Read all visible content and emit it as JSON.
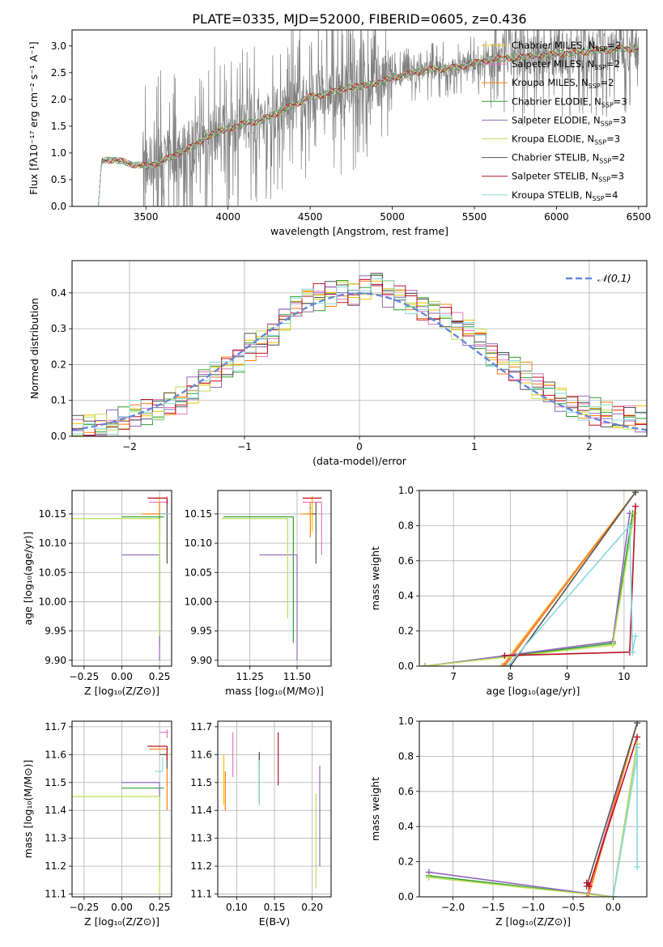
{
  "figure_title": "PLATE=0335, MJD=52000, FIBERID=0605, z=0.436",
  "colors": {
    "observed": "#808080",
    "normal": "#6688dd",
    "models": [
      "#f2c200",
      "#e377c2",
      "#ff7f0e",
      "#2ca02c",
      "#9467bd",
      "#bcdf5a",
      "#555555",
      "#bb1122",
      "#88d8dc"
    ]
  },
  "chart_data": [
    {
      "id": "spectrum",
      "type": "line",
      "xlabel": "wavelength [Angstrom, rest frame]",
      "ylabel": "Flux [fλ10⁻¹⁷ erg cm⁻² s⁻¹ A⁻¹]",
      "xlim": [
        3050,
        6550
      ],
      "ylim": [
        0,
        3.3
      ],
      "xticks": [
        3500,
        4000,
        4500,
        5000,
        5500,
        6000,
        6500
      ],
      "yticks": [
        0.0,
        0.5,
        1.0,
        1.5,
        2.0,
        2.5,
        3.0
      ],
      "legend_position": "top-right",
      "legend": [
        "Chabrier MILES, N_SSP=2",
        "Salpeter MILES, N_SSP=2",
        "Kroupa MILES, N_SSP=2",
        "Chabrier ELODIE, N_SSP=3",
        "Salpeter ELODIE, N_SSP=3",
        "Kroupa ELODIE, N_SSP=3",
        "Chabrier STELIB, N_SSP=2",
        "Salpeter STELIB, N_SSP=3",
        "Kroupa STELIB, N_SSP=4"
      ],
      "model_continuum": {
        "x": [
          3210,
          3230,
          3300,
          3400,
          3500,
          3600,
          3700,
          3800,
          3900,
          4000,
          4100,
          4200,
          4300,
          4400,
          4500,
          4600,
          4700,
          4800,
          4900,
          5000,
          5200,
          5400,
          5600,
          5800,
          6000,
          6200,
          6400
        ],
        "y": [
          0.0,
          0.85,
          0.88,
          0.8,
          0.75,
          0.85,
          1.0,
          1.15,
          1.35,
          1.45,
          1.55,
          1.6,
          1.75,
          1.9,
          2.05,
          2.1,
          2.2,
          2.25,
          2.3,
          2.4,
          2.55,
          2.6,
          2.75,
          2.8,
          2.85,
          2.9,
          2.95
        ]
      }
    },
    {
      "id": "residuals",
      "type": "histogram",
      "xlabel": "(data-model)/error",
      "ylabel": "Normed distribution",
      "xlim": [
        -2.5,
        2.5
      ],
      "ylim": [
        0,
        0.49
      ],
      "xticks": [
        -2,
        -1,
        0,
        1,
        2
      ],
      "yticks": [
        0.0,
        0.1,
        0.2,
        0.3,
        0.4
      ],
      "legend": [
        "𝒩(0,1)"
      ],
      "legend_position": "top-right",
      "bin_edges": [
        -2.5,
        -2.4,
        -2.3,
        -2.2,
        -2.1,
        -2.0,
        -1.9,
        -1.8,
        -1.7,
        -1.6,
        -1.5,
        -1.4,
        -1.3,
        -1.2,
        -1.1,
        -1.0,
        -0.9,
        -0.8,
        -0.7,
        -0.6,
        -0.5,
        -0.4,
        -0.3,
        -0.2,
        -0.1,
        0.0,
        0.1,
        0.2,
        0.3,
        0.4,
        0.5,
        0.6,
        0.7,
        0.8,
        0.9,
        1.0,
        1.1,
        1.2,
        1.3,
        1.4,
        1.5,
        1.6,
        1.7,
        1.8,
        1.9,
        2.0,
        2.1,
        2.2,
        2.3,
        2.4,
        2.5
      ],
      "base_density": [
        0.02,
        0.025,
        0.03,
        0.035,
        0.045,
        0.06,
        0.065,
        0.07,
        0.09,
        0.1,
        0.13,
        0.16,
        0.17,
        0.19,
        0.21,
        0.25,
        0.26,
        0.29,
        0.33,
        0.36,
        0.38,
        0.39,
        0.4,
        0.41,
        0.4,
        0.42,
        0.43,
        0.4,
        0.39,
        0.38,
        0.36,
        0.35,
        0.34,
        0.31,
        0.29,
        0.27,
        0.23,
        0.21,
        0.19,
        0.17,
        0.14,
        0.12,
        0.1,
        0.09,
        0.08,
        0.07,
        0.06,
        0.05,
        0.05,
        0.045
      ]
    },
    {
      "id": "age-vs-Z",
      "type": "errorbar",
      "xlabel": "Z [log₁₀(Z/Z⊙)]",
      "ylabel": "age  [log₁₀(age/yr)]",
      "xlim": [
        -0.33,
        0.33
      ],
      "ylim": [
        9.89,
        10.19
      ],
      "xticks": [
        -0.25,
        0.0,
        0.25
      ],
      "xticklabels": [
        "−0.25",
        "0.00",
        "0.25"
      ],
      "yticks": [
        9.9,
        9.95,
        10.0,
        10.05,
        10.1,
        10.15
      ],
      "points": [
        {
          "model": 0,
          "x": 0.25,
          "y": 10.15,
          "xlo": 0.07,
          "xhi": 0.05,
          "ylo": 0.03,
          "yhi": 0.03
        },
        {
          "model": 1,
          "x": 0.3,
          "y": 10.17,
          "xlo": 0.12,
          "xhi": 0.01,
          "ylo": 0.1,
          "yhi": 0.01
        },
        {
          "model": 2,
          "x": 0.25,
          "y": 10.15,
          "xlo": 0.12,
          "xhi": 0.05,
          "ylo": 0.04,
          "yhi": 0.02
        },
        {
          "model": 3,
          "x": 0.25,
          "y": 10.145,
          "xlo": 0.25,
          "xhi": 0.03,
          "ylo": 0.22,
          "yhi": 0.0
        },
        {
          "model": 4,
          "x": 0.25,
          "y": 10.08,
          "xlo": 0.25,
          "xhi": 0.0,
          "ylo": 0.18,
          "yhi": 0.0
        },
        {
          "model": 5,
          "x": 0.25,
          "y": 10.142,
          "xlo": 0.58,
          "xhi": 0.0,
          "ylo": 0.2,
          "yhi": 0.0
        },
        {
          "model": 6,
          "x": 0.3,
          "y": 10.15,
          "xlo": 0.05,
          "xhi": 0.01,
          "ylo": 0.085,
          "yhi": 0.025
        },
        {
          "model": 7,
          "x": 0.3,
          "y": 10.177,
          "xlo": 0.13,
          "xhi": 0.0,
          "ylo": 0.01,
          "yhi": 0.0
        },
        {
          "model": 8,
          "x": 0.3,
          "y": 10.15,
          "xlo": 0.05,
          "xhi": 0.01,
          "ylo": 0.0,
          "yhi": 0.0
        }
      ]
    },
    {
      "id": "age-vs-mass",
      "type": "errorbar",
      "xlabel": "mass [log₁₀(M/M⊙)]",
      "xlim": [
        11.08,
        11.68
      ],
      "ylim": [
        9.89,
        10.19
      ],
      "xticks": [
        11.25,
        11.5
      ],
      "xticklabels": [
        "11.25",
        "11.50"
      ],
      "yticks": [
        9.9,
        9.95,
        10.0,
        10.05,
        10.1,
        10.15
      ],
      "points": [
        {
          "model": 0,
          "x": 11.58,
          "y": 10.15,
          "xlo": 0.03,
          "xhi": 0.03,
          "ylo": 0.03,
          "yhi": 0.03
        },
        {
          "model": 1,
          "x": 11.63,
          "y": 10.17,
          "xlo": 0.1,
          "xhi": 0.0,
          "ylo": 0.09,
          "yhi": 0.0
        },
        {
          "model": 2,
          "x": 11.57,
          "y": 10.15,
          "xlo": 0.05,
          "xhi": 0.02,
          "ylo": 0.04,
          "yhi": 0.02
        },
        {
          "model": 3,
          "x": 11.48,
          "y": 10.145,
          "xlo": 0.37,
          "xhi": 0.0,
          "ylo": 0.215,
          "yhi": 0.0
        },
        {
          "model": 4,
          "x": 11.5,
          "y": 10.08,
          "xlo": 0.2,
          "xhi": 0.0,
          "ylo": 0.18,
          "yhi": 0.0
        },
        {
          "model": 5,
          "x": 11.45,
          "y": 10.142,
          "xlo": 0.35,
          "xhi": 0.0,
          "ylo": 0.17,
          "yhi": 0.0
        },
        {
          "model": 6,
          "x": 11.6,
          "y": 10.15,
          "xlo": 0.02,
          "xhi": 0.0,
          "ylo": 0.085,
          "yhi": 0.02
        },
        {
          "model": 7,
          "x": 11.63,
          "y": 10.177,
          "xlo": 0.1,
          "xhi": 0.0,
          "ylo": 0.0,
          "yhi": 0.0
        },
        {
          "model": 8,
          "x": 11.58,
          "y": 10.16,
          "xlo": 0.02,
          "xhi": 0.0,
          "ylo": 0.0,
          "yhi": 0.0
        }
      ]
    },
    {
      "id": "weight-vs-age",
      "type": "line",
      "xlabel": "age  [log₁₀(age/yr)]",
      "ylabel": "mass weight",
      "xlim": [
        6.4,
        10.4
      ],
      "ylim": [
        0.0,
        1.0
      ],
      "xticks": [
        7,
        8,
        9,
        10
      ],
      "yticks": [
        0.0,
        0.2,
        0.4,
        0.6,
        0.8,
        1.0
      ],
      "series": [
        {
          "model": 0,
          "x": [
            7.85,
            10.2
          ],
          "y": [
            0.0,
            0.99
          ]
        },
        {
          "model": 1,
          "x": [
            7.88,
            10.2
          ],
          "y": [
            0.0,
            0.99
          ]
        },
        {
          "model": 2,
          "x": [
            7.9,
            10.2
          ],
          "y": [
            0.0,
            0.99
          ]
        },
        {
          "model": 3,
          "x": [
            6.5,
            9.8,
            10.15
          ],
          "y": [
            0.0,
            0.13,
            0.87
          ]
        },
        {
          "model": 4,
          "x": [
            6.5,
            9.8,
            10.1
          ],
          "y": [
            0.0,
            0.14,
            0.87
          ]
        },
        {
          "model": 5,
          "x": [
            6.5,
            9.8,
            10.18
          ],
          "y": [
            0.0,
            0.12,
            0.87
          ]
        },
        {
          "model": 6,
          "x": [
            8.0,
            10.2
          ],
          "y": [
            0.0,
            0.99
          ]
        },
        {
          "model": 7,
          "x": [
            7.9,
            10.1,
            10.2
          ],
          "y": [
            0.06,
            0.08,
            0.91
          ]
        },
        {
          "model": 8,
          "x": [
            7.95,
            10.1,
            10.15,
            10.2
          ],
          "y": [
            0.0,
            0.8,
            0.08,
            0.17
          ]
        }
      ]
    },
    {
      "id": "mass-vs-Z",
      "type": "errorbar",
      "xlabel": "Z [log₁₀(Z/Z⊙)]",
      "ylabel": "mass [log₁₀(M/M⊙)]",
      "xlim": [
        -0.33,
        0.33
      ],
      "ylim": [
        11.09,
        11.72
      ],
      "xticks": [
        -0.25,
        0.0,
        0.25
      ],
      "xticklabels": [
        "−0.25",
        "0.00",
        "0.25"
      ],
      "yticks": [
        11.1,
        11.2,
        11.3,
        11.4,
        11.5,
        11.6,
        11.7
      ],
      "points": [
        {
          "model": 0,
          "x": 0.3,
          "y": 11.6,
          "xlo": 0.05,
          "xhi": 0.01,
          "ylo": 0.05,
          "yhi": 0.0
        },
        {
          "model": 1,
          "x": 0.3,
          "y": 11.68,
          "xlo": 0.05,
          "xhi": 0.01,
          "ylo": 0.02,
          "yhi": 0.01
        },
        {
          "model": 2,
          "x": 0.3,
          "y": 11.62,
          "xlo": 0.12,
          "xhi": 0.01,
          "ylo": 0.22,
          "yhi": 0.0
        },
        {
          "model": 3,
          "x": 0.25,
          "y": 11.48,
          "xlo": 0.25,
          "xhi": 0.03,
          "ylo": 0.3,
          "yhi": 0.0
        },
        {
          "model": 4,
          "x": 0.25,
          "y": 11.5,
          "xlo": 0.25,
          "xhi": 0.0,
          "ylo": 0.3,
          "yhi": 0.0
        },
        {
          "model": 5,
          "x": 0.25,
          "y": 11.45,
          "xlo": 0.58,
          "xhi": 0.0,
          "ylo": 0.35,
          "yhi": 0.0
        },
        {
          "model": 6,
          "x": 0.3,
          "y": 11.6,
          "xlo": 0.05,
          "xhi": 0.0,
          "ylo": 0.05,
          "yhi": 0.0
        },
        {
          "model": 7,
          "x": 0.3,
          "y": 11.63,
          "xlo": 0.13,
          "xhi": 0.0,
          "ylo": 0.05,
          "yhi": 0.0
        },
        {
          "model": 8,
          "x": 0.27,
          "y": 11.54,
          "xlo": 0.05,
          "xhi": 0.0,
          "ylo": 0.0,
          "yhi": 0.05
        }
      ]
    },
    {
      "id": "mass-vs-EBV",
      "type": "errorbar",
      "xlabel": "E(B-V)",
      "xlim": [
        0.075,
        0.225
      ],
      "ylim": [
        11.09,
        11.72
      ],
      "xticks": [
        0.1,
        0.15,
        0.2
      ],
      "xticklabels": [
        "0.10",
        "0.15",
        "0.20"
      ],
      "yticks": [
        11.1,
        11.2,
        11.3,
        11.4,
        11.5,
        11.6,
        11.7
      ],
      "points": [
        {
          "model": 0,
          "x": 0.083,
          "y": 11.5,
          "xlo": 0.0,
          "xhi": 0.0,
          "ylo": 0.08,
          "yhi": 0.1
        },
        {
          "model": 1,
          "x": 0.095,
          "y": 11.6,
          "xlo": 0.0,
          "xhi": 0.0,
          "ylo": 0.08,
          "yhi": 0.08
        },
        {
          "model": 2,
          "x": 0.085,
          "y": 11.48,
          "xlo": 0.0,
          "xhi": 0.0,
          "ylo": 0.08,
          "yhi": 0.06
        },
        {
          "model": 3,
          "x": 0.13,
          "y": 11.52,
          "xlo": 0.0,
          "xhi": 0.0,
          "ylo": 0.1,
          "yhi": 0.08
        },
        {
          "model": 4,
          "x": 0.21,
          "y": 11.4,
          "xlo": 0.0,
          "xhi": 0.0,
          "ylo": 0.2,
          "yhi": 0.16
        },
        {
          "model": 5,
          "x": 0.205,
          "y": 11.3,
          "xlo": 0.0,
          "xhi": 0.0,
          "ylo": 0.18,
          "yhi": 0.16
        },
        {
          "model": 6,
          "x": 0.13,
          "y": 11.5,
          "xlo": 0.0,
          "xhi": 0.0,
          "ylo": 0.07,
          "yhi": 0.11
        },
        {
          "model": 7,
          "x": 0.155,
          "y": 11.58,
          "xlo": 0.0,
          "xhi": 0.0,
          "ylo": 0.09,
          "yhi": 0.1
        },
        {
          "model": 8,
          "x": 0.13,
          "y": 11.5,
          "xlo": 0.0,
          "xhi": 0.0,
          "ylo": 0.08,
          "yhi": 0.08
        }
      ]
    },
    {
      "id": "weight-vs-Z",
      "type": "line",
      "xlabel": "Z [log₁₀(Z/Z⊙)]",
      "ylabel": "mass weight",
      "xlim": [
        -2.42,
        0.42
      ],
      "ylim": [
        0.0,
        1.0
      ],
      "xticks": [
        -2.0,
        -1.5,
        -1.0,
        -0.5,
        0.0
      ],
      "xticklabels": [
        "−2.0",
        "−1.5",
        "−1.0",
        "−0.5",
        "0.0"
      ],
      "yticks": [
        0.0,
        0.2,
        0.4,
        0.6,
        0.8,
        1.0
      ],
      "series": [
        {
          "model": 0,
          "x": [
            -0.33,
            0.3
          ],
          "y": [
            0.0,
            0.99
          ]
        },
        {
          "model": 1,
          "x": [
            -0.33,
            0.3
          ],
          "y": [
            0.0,
            0.99
          ]
        },
        {
          "model": 2,
          "x": [
            -0.31,
            0.3
          ],
          "y": [
            0.0,
            0.99
          ]
        },
        {
          "model": 3,
          "x": [
            -2.3,
            0.0,
            0.3
          ],
          "y": [
            0.12,
            0.0,
            0.87
          ]
        },
        {
          "model": 4,
          "x": [
            -2.3,
            0.0,
            0.3
          ],
          "y": [
            0.14,
            0.0,
            0.87
          ]
        },
        {
          "model": 5,
          "x": [
            -2.3,
            0.0,
            0.3
          ],
          "y": [
            0.11,
            0.0,
            0.87
          ]
        },
        {
          "model": 6,
          "x": [
            -0.33,
            0.3
          ],
          "y": [
            0.06,
            0.99
          ]
        },
        {
          "model": 7,
          "x": [
            -0.33,
            -0.3,
            0.3
          ],
          "y": [
            0.08,
            0.06,
            0.91
          ]
        },
        {
          "model": 8,
          "x": [
            0.0,
            0.3,
            0.3,
            0.3
          ],
          "y": [
            0.0,
            0.8,
            0.17,
            0.85
          ]
        }
      ]
    }
  ]
}
